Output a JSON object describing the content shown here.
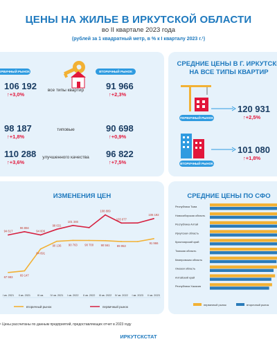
{
  "header": {
    "title": "ЦЕНЫ НА ЖИЛЬЕ В ИРКУТСКОЙ ОБЛАСТИ",
    "subtitle": "во II квартале 2023 года",
    "note": "(рублей за 1 квадратный метр, в % к I кварталу 2023 г.¹)"
  },
  "markets": {
    "primary_label": "ПЕРВИЧНЫЙ РЫНОК",
    "secondary_label": "ВТОРИЧНЫЙ РЫНОК",
    "rows": [
      {
        "category": "все типы квартир",
        "primary": "106 192",
        "primary_change": "↑+3,0%",
        "secondary": "91 966",
        "secondary_change": "↑+2,3%"
      },
      {
        "category": "типовые",
        "primary": "98 187",
        "primary_change": "↑+1,8%",
        "secondary": "90 698",
        "secondary_change": "↑+0,9%"
      },
      {
        "category": "улучшенного качества",
        "primary": "110 288",
        "primary_change": "↑+3,6%",
        "secondary": "96 822",
        "secondary_change": "↑+7,5%"
      }
    ]
  },
  "irkutsk": {
    "title_line1": "СРЕДНИЕ ЦЕНЫ В Г. ИРКУТСКЕ",
    "title_line2": "НА ВСЕ ТИПЫ КВАРТИР",
    "primary_label": "ПЕРВИЧНЫЙ РЫНОК",
    "primary_value": "120 931",
    "primary_change": "↑+2,5%",
    "secondary_label": "ВТОРИЧНЫЙ РЫНОК",
    "secondary_value": "101 080",
    "secondary_change": "↑+1,8%"
  },
  "chart_data": [
    {
      "type": "line",
      "title": "ИЗМЕНЕНИЯ ЦЕН",
      "categories": [
        "I кв. 2021",
        "II кв. 2021",
        "III кв. 2021",
        "IV кв. 2021",
        "I кв. 2022",
        "II кв. 2022",
        "III кв. 2022",
        "IV кв. 2022",
        "I кв. 2023",
        "II кв. 2023"
      ],
      "category_labels": [
        "I кв. 2021",
        "II кв. 2021",
        "III кв.",
        "IV кв. 2021",
        "I кв. 2022",
        "II кв. 2022",
        "III кв. 2022",
        "IV кв. 2022",
        "I кв. 2023",
        "II кв. 2023"
      ],
      "series": [
        {
          "name": "вторичный рынок",
          "color": "#f2b134",
          "values": [
            67983,
            69147,
            84691,
            90136,
            90763,
            90700,
            90561,
            89953,
            89900,
            91966
          ],
          "labels": [
            "67 983",
            "69 147",
            "84 691",
            "90 136",
            "90 763",
            "90 700",
            "90 561",
            "89 953",
            "",
            "91 966"
          ]
        },
        {
          "name": "первичный рынок",
          "color": "#d6203f",
          "values": [
            94617,
            96894,
            94606,
            98631,
            101346,
            99800,
            108809,
            103077,
            103100,
            106192
          ],
          "labels": [
            "94 617",
            "96 894",
            "94 606",
            "98 631",
            "101 346",
            "",
            "108 809",
            "103 077",
            "",
            "106 192"
          ]
        }
      ],
      "ylim": [
        62000,
        114000
      ],
      "grid": false,
      "legend": "bottom"
    },
    {
      "type": "bar",
      "orientation": "horizontal",
      "title": "СРЕДНИЕ ЦЕНЫ ПО СФО",
      "categories": [
        "Республика Тыва",
        "Новосибирская область",
        "Республика Алтай",
        "Иркутская область",
        "Красноярский край",
        "Томская область",
        "Кемеровская область",
        "Омская область",
        "Алтайский край",
        "Республика Хакасия"
      ],
      "series": [
        {
          "name": "первичный рынок",
          "color": "#f2b134",
          "values": [
            130000,
            118000,
            112000,
            106192,
            104000,
            100000,
            95000,
            92000,
            88000,
            84000
          ]
        },
        {
          "name": "вторичный рынок",
          "color": "#2b7bb9",
          "values": [
            122000,
            112000,
            106000,
            91966,
            99000,
            96000,
            90000,
            86000,
            83000,
            80000
          ]
        }
      ],
      "legend": "bottom"
    }
  ],
  "footer": {
    "note": "¹ Цены рассчитаны по данным предприятий, предоставляющих отчет в 2023 году",
    "source": "ИРКУТСКСТАТ"
  }
}
